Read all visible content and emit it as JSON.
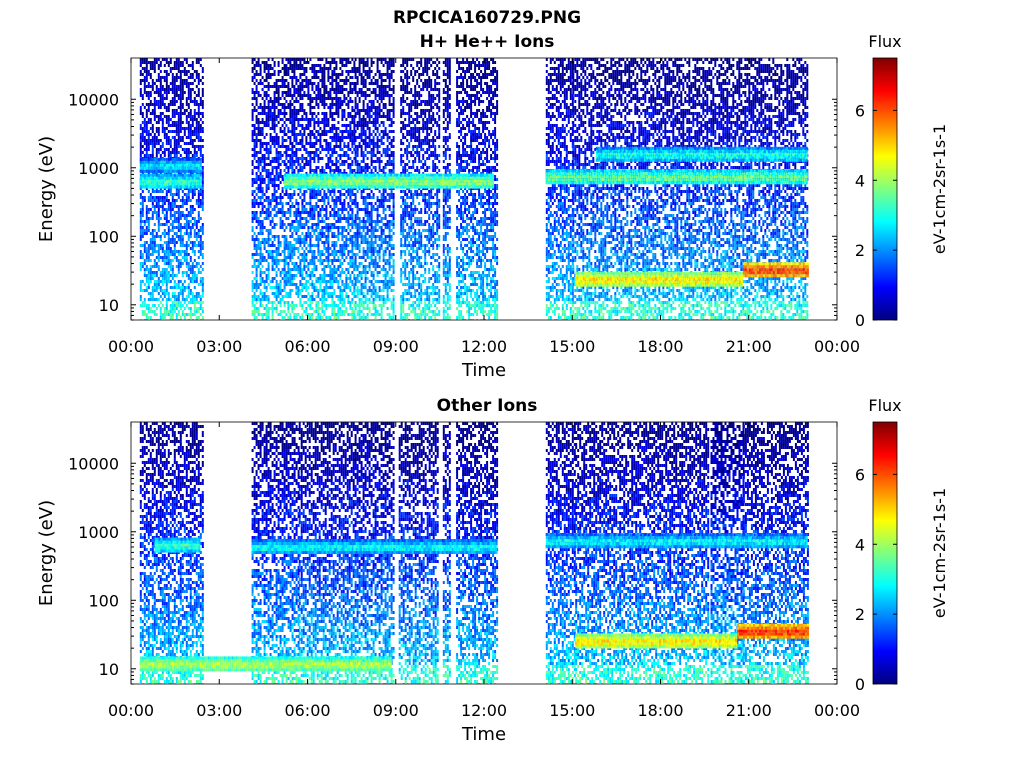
{
  "figure": {
    "title": "RPCICA160729.PNG"
  },
  "colormap": [
    "#00007f",
    "#0000ff",
    "#007fff",
    "#00ffff",
    "#7fff7f",
    "#ffff00",
    "#ff7f00",
    "#ff0000",
    "#7f0000"
  ],
  "chart_data": [
    {
      "type": "heatmap",
      "title": "H+ He++ Ions",
      "xlabel": "Time",
      "ylabel": "Energy (eV)",
      "x_ticks": [
        "00:00",
        "03:00",
        "06:00",
        "09:00",
        "12:00",
        "15:00",
        "18:00",
        "21:00",
        "00:00"
      ],
      "x_range_hours": [
        0,
        24
      ],
      "y_scale": "log",
      "y_ticks": [
        10,
        100,
        1000,
        10000
      ],
      "y_tick_labels": [
        "10",
        "100",
        "1000",
        "10000"
      ],
      "y_range_eV": [
        6,
        40000
      ],
      "colorbar": {
        "title": "Flux",
        "label": "eV-1cm-2sr-1s-1",
        "range": [
          0,
          7.5
        ],
        "ticks": [
          0,
          2,
          4,
          6
        ],
        "tick_labels": [
          "0",
          "2",
          "4",
          "6"
        ]
      },
      "data_intervals_hours": [
        [
          0.3,
          2.45
        ],
        [
          4.1,
          5.25
        ],
        [
          5.25,
          7.6
        ],
        [
          7.6,
          8.95
        ],
        [
          9.15,
          10.45
        ],
        [
          10.6,
          10.85
        ],
        [
          11.05,
          12.45
        ],
        [
          14.1,
          15.0
        ],
        [
          15.0,
          23.0
        ]
      ],
      "bands": [
        {
          "from_h": 5.2,
          "to_h": 12.3,
          "energy_eV": 650,
          "level": 4.0
        },
        {
          "from_h": 0.3,
          "to_h": 2.4,
          "energy_eV": 650,
          "level": 3.4
        },
        {
          "from_h": 0.3,
          "to_h": 2.4,
          "energy_eV": 1100,
          "level": 2.8
        },
        {
          "from_h": 14.1,
          "to_h": 23.0,
          "energy_eV": 750,
          "level": 3.8
        },
        {
          "from_h": 15.8,
          "to_h": 23.0,
          "energy_eV": 1600,
          "level": 3.2
        },
        {
          "from_h": 15.1,
          "to_h": 20.8,
          "energy_eV": 24,
          "level": 5.0
        },
        {
          "from_h": 20.8,
          "to_h": 23.0,
          "energy_eV": 33,
          "level": 6.2
        }
      ]
    },
    {
      "type": "heatmap",
      "title": "Other Ions",
      "xlabel": "Time",
      "ylabel": "Energy (eV)",
      "x_ticks": [
        "00:00",
        "03:00",
        "06:00",
        "09:00",
        "12:00",
        "15:00",
        "18:00",
        "21:00",
        "00:00"
      ],
      "x_range_hours": [
        0,
        24
      ],
      "y_scale": "log",
      "y_ticks": [
        10,
        100,
        1000,
        10000
      ],
      "y_tick_labels": [
        "10",
        "100",
        "1000",
        "10000"
      ],
      "y_range_eV": [
        6,
        40000
      ],
      "colorbar": {
        "title": "Flux",
        "label": "eV-1cm-2sr-1s-1",
        "range": [
          0,
          7.5
        ],
        "ticks": [
          0,
          2,
          4,
          6
        ],
        "tick_labels": [
          "0",
          "2",
          "4",
          "6"
        ]
      },
      "data_intervals_hours": [
        [
          0.3,
          2.45
        ],
        [
          4.1,
          5.7
        ],
        [
          5.7,
          7.6
        ],
        [
          7.6,
          8.95
        ],
        [
          9.1,
          10.4
        ],
        [
          10.6,
          10.85
        ],
        [
          11.05,
          12.45
        ],
        [
          14.1,
          15.1
        ],
        [
          15.1,
          19.6
        ],
        [
          19.7,
          20.8
        ],
        [
          20.8,
          23.0
        ]
      ],
      "bands": [
        {
          "from_h": 0.8,
          "to_h": 2.3,
          "energy_eV": 650,
          "level": 3.4
        },
        {
          "from_h": 4.1,
          "to_h": 12.4,
          "energy_eV": 620,
          "level": 3.0
        },
        {
          "from_h": 14.1,
          "to_h": 23.0,
          "energy_eV": 750,
          "level": 3.0
        },
        {
          "from_h": 15.1,
          "to_h": 20.6,
          "energy_eV": 26,
          "level": 5.0
        },
        {
          "from_h": 20.6,
          "to_h": 23.0,
          "energy_eV": 36,
          "level": 6.3
        },
        {
          "from_h": 0.3,
          "to_h": 8.8,
          "energy_eV": 12,
          "level": 4.3
        }
      ]
    }
  ]
}
